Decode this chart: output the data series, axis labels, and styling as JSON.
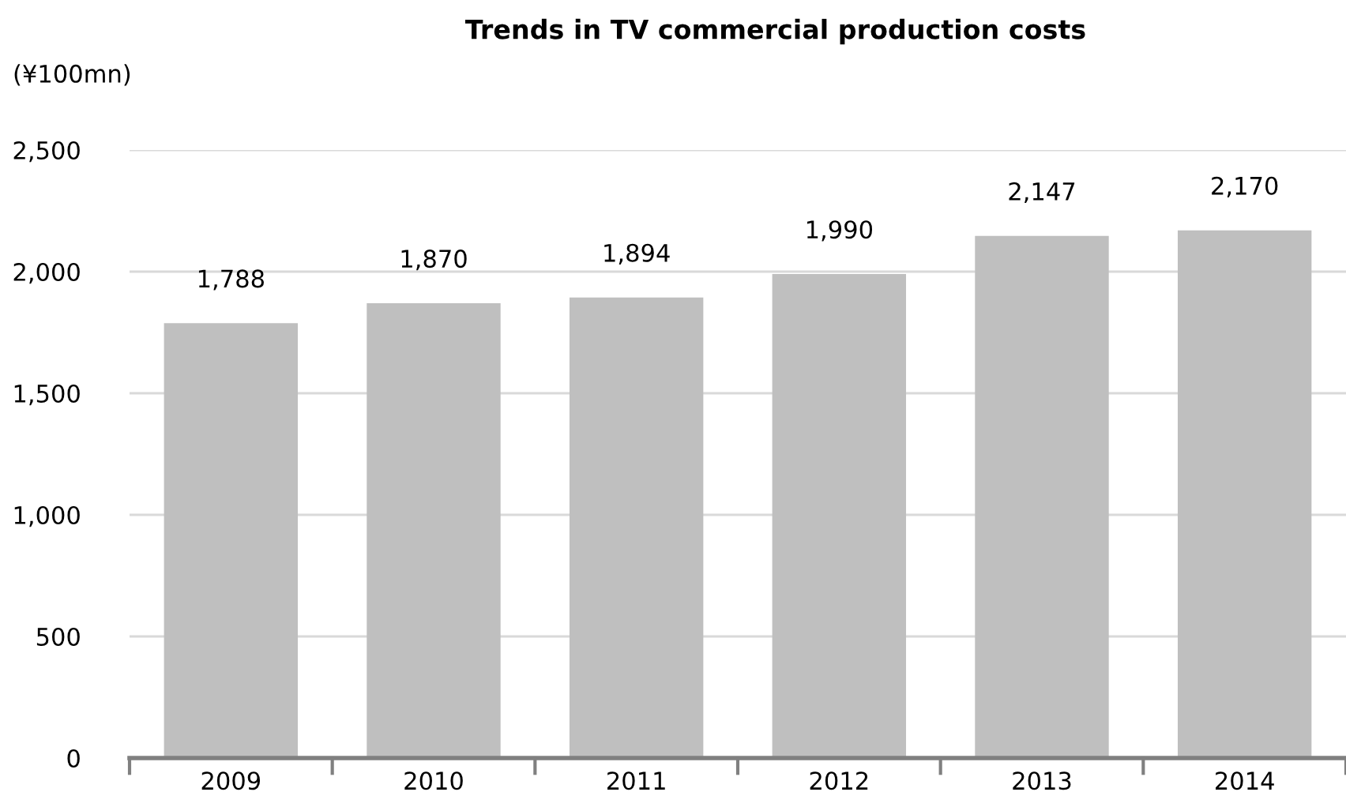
{
  "chart_data": {
    "type": "bar",
    "title": "Trends in TV commercial production costs",
    "ylabel": "(¥100mn)",
    "categories": [
      "2009",
      "2010",
      "2011",
      "2012",
      "2013",
      "2014"
    ],
    "values": [
      1788,
      1870,
      1894,
      1990,
      2147,
      2170
    ],
    "color": "#bfbfbf",
    "ylim": [
      0,
      2500
    ],
    "yticks": [
      {
        "value": 0,
        "label": "0"
      },
      {
        "value": 500,
        "label": "500"
      },
      {
        "value": 1000,
        "label": "1,000"
      },
      {
        "value": 1500,
        "label": "1,500"
      },
      {
        "value": 2000,
        "label": "2,000"
      },
      {
        "value": 2500,
        "label": "2,500"
      }
    ],
    "value_labels": [
      "1,788",
      "1,870",
      "1,894",
      "1,990",
      "2,147",
      "2,170"
    ],
    "grid": "y",
    "legend": false
  }
}
